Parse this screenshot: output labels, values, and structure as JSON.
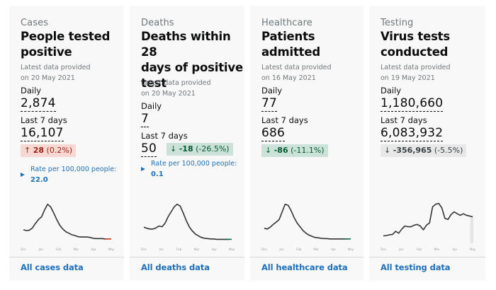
{
  "cards": [
    {
      "category": "Cases",
      "title_lines": [
        "People tested",
        "positive"
      ],
      "updated_line1": "Latest data provided",
      "updated_line2": "on 20 May 2021",
      "daily_label": "Daily",
      "daily_value": "2,874",
      "week_label": "Last 7 days",
      "week_value": "16,107",
      "change_arrow": "↑",
      "change_value": "28",
      "change_pct": "(0.2%)",
      "change_direction": "up",
      "rate_label": "Rate per 100,000 people:",
      "rate_value": "22.0",
      "link": "All cases data",
      "chart_color": "#333333",
      "chart_tail_color": "#d4351c"
    },
    {
      "category": "Deaths",
      "title_lines": [
        "Deaths within 28",
        "days of positive",
        "test"
      ],
      "updated_line1": "Latest data provided",
      "updated_line2": "on 20 May 2021",
      "daily_label": "Daily",
      "daily_value": "7",
      "week_label": "Last 7 days",
      "week_value": "50",
      "change_arrow": "↓",
      "change_value": "-18",
      "change_pct": "(-26.5%)",
      "change_direction": "down",
      "rate_label": "Rate per 100,000 people:",
      "rate_value": "0.1",
      "link": "All deaths data",
      "chart_color": "#333333",
      "chart_tail_color": "#00703c"
    },
    {
      "category": "Healthcare",
      "title_lines": [
        "Patients",
        "admitted"
      ],
      "updated_line1": "Latest data provided",
      "updated_line2": "on 16 May 2021",
      "daily_label": "Daily",
      "daily_value": "77",
      "week_label": "Last 7 days",
      "week_value": "686",
      "change_arrow": "↓",
      "change_value": "-86",
      "change_pct": "(-11.1%)",
      "change_direction": "down",
      "link": "All healthcare data",
      "chart_color": "#333333",
      "chart_tail_color": "#00703c"
    },
    {
      "category": "Testing",
      "title_lines": [
        "Virus tests",
        "conducted"
      ],
      "updated_line1": "Latest data provided",
      "updated_line2": "on 19 May 2021",
      "daily_label": "Daily",
      "daily_value": "1,180,660",
      "week_label": "Last 7 days",
      "week_value": "6,083,932",
      "change_arrow": "↓",
      "change_value": "-356,965",
      "change_pct": "(-5.5%)",
      "change_direction": "neutral",
      "link": "All testing data",
      "chart_color": "#333333",
      "chart_tail_color": "#333333"
    }
  ],
  "chart_data": [
    {
      "type": "line",
      "title": "People tested positive",
      "x_tick_labels": [
        "Dec",
        "Jan",
        "Feb",
        "Mar",
        "Apr",
        "May"
      ],
      "y": [
        0.28,
        0.26,
        0.27,
        0.33,
        0.45,
        0.55,
        0.62,
        0.8,
        0.95,
        0.88,
        0.72,
        0.55,
        0.4,
        0.3,
        0.23,
        0.19,
        0.15,
        0.13,
        0.1,
        0.09,
        0.09,
        0.09,
        0.08,
        0.06,
        0.05,
        0.05,
        0.05,
        0.04,
        0.04,
        0.04
      ],
      "ylim": [
        0,
        1
      ],
      "note": "relative scale, no y-axis shown"
    },
    {
      "type": "line",
      "title": "Deaths within 28 days of positive test",
      "x_tick_labels": [
        "Dec",
        "Jan",
        "Feb",
        "Mar",
        "Apr",
        "May"
      ],
      "y": [
        0.35,
        0.32,
        0.3,
        0.3,
        0.33,
        0.38,
        0.36,
        0.45,
        0.62,
        0.75,
        0.88,
        0.95,
        0.9,
        0.72,
        0.52,
        0.36,
        0.25,
        0.17,
        0.12,
        0.08,
        0.06,
        0.05,
        0.04,
        0.04,
        0.03,
        0.03,
        0.03,
        0.03,
        0.03,
        0.03
      ],
      "ylim": [
        0,
        1
      ],
      "note": "relative scale, no y-axis shown"
    },
    {
      "type": "line",
      "title": "Patients admitted",
      "x_tick_labels": [
        "Dec",
        "Jan",
        "Feb",
        "Mar",
        "Apr",
        "May"
      ],
      "y": [
        0.32,
        0.3,
        0.35,
        0.42,
        0.48,
        0.55,
        0.75,
        0.95,
        0.92,
        0.78,
        0.6,
        0.46,
        0.36,
        0.26,
        0.19,
        0.14,
        0.11,
        0.08,
        0.07,
        0.06,
        0.05,
        0.05,
        0.04,
        0.04,
        0.04,
        0.04,
        0.04,
        0.04,
        0.04,
        0.04
      ],
      "ylim": [
        0,
        1
      ],
      "note": "relative scale, no y-axis shown"
    },
    {
      "type": "line",
      "title": "Virus tests conducted",
      "x_tick_labels": [
        "Dec",
        "Jan",
        "Feb",
        "Mar",
        "Apr",
        "May"
      ],
      "y": [
        0.12,
        0.13,
        0.15,
        0.16,
        0.24,
        0.19,
        0.3,
        0.38,
        0.36,
        0.36,
        0.4,
        0.42,
        0.38,
        0.28,
        0.4,
        0.46,
        0.88,
        0.95,
        0.97,
        0.85,
        0.58,
        0.55,
        0.68,
        0.75,
        0.7,
        0.66,
        0.7,
        0.66,
        0.64,
        0.62
      ],
      "ylim": [
        0,
        1
      ],
      "incomplete_region": "last ~5% of range shaded",
      "note": "relative scale, no y-axis shown"
    }
  ]
}
